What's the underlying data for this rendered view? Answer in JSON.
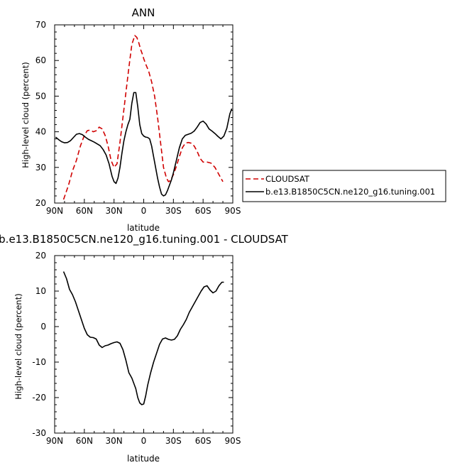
{
  "chart_data": [
    {
      "type": "line",
      "title": "ANN",
      "xlabel": "latitude",
      "ylabel": "High-level cloud (percent)",
      "xlim": [
        90,
        -90
      ],
      "ylim": [
        20,
        70
      ],
      "xticks": [
        90,
        60,
        30,
        0,
        -30,
        -60,
        -90
      ],
      "xtick_labels": [
        "90N",
        "60N",
        "30N",
        "0",
        "30S",
        "60S",
        "90S"
      ],
      "yticks": [
        20,
        30,
        40,
        50,
        60,
        70
      ],
      "ytick_labels": [
        "20",
        "30",
        "40",
        "50",
        "60",
        "70"
      ],
      "legend": {
        "placement": "right",
        "entries": [
          {
            "label": "CLOUDSAT",
            "color": "#d00000",
            "dash": "dashed"
          },
          {
            "label": "b.e13.B1850C5CN.ne120_g16.tuning.001",
            "color": "#000000",
            "dash": "solid"
          }
        ]
      },
      "series": [
        {
          "name": "CLOUDSAT",
          "color": "#d00000",
          "dash": "dashed",
          "x": [
            81,
            76,
            72,
            68,
            64,
            60,
            57,
            54,
            51,
            48,
            45,
            42,
            39,
            36,
            33,
            30,
            27,
            24,
            21,
            18,
            15,
            12,
            9,
            7,
            5,
            3,
            1,
            0,
            -2,
            -5,
            -8,
            -11,
            -14,
            -17,
            -20,
            -23,
            -25,
            -27,
            -30,
            -33,
            -36,
            -39,
            -42,
            -45,
            -48,
            -51,
            -54,
            -57,
            -60,
            -64,
            -68,
            -72,
            -76,
            -80
          ],
          "y": [
            21,
            25,
            29,
            32,
            36,
            39,
            40.3,
            40.5,
            40,
            40.3,
            41.3,
            40.8,
            39,
            36,
            32,
            30,
            31,
            37,
            44,
            51,
            58,
            64.5,
            67,
            66.5,
            65,
            63,
            61.5,
            60.5,
            59,
            57,
            54,
            50,
            44,
            37,
            30,
            27,
            26,
            26.3,
            28,
            30.3,
            33,
            35.5,
            36.8,
            37,
            36.8,
            36,
            34.5,
            32.5,
            31.5,
            31.5,
            31.2,
            30,
            28,
            26
          ]
        },
        {
          "name": "b.e13.B1850C5CN.ne120_g16.tuning.001",
          "color": "#000000",
          "dash": "solid",
          "x": [
            89,
            86,
            83,
            80,
            77,
            74,
            71,
            68,
            65,
            62,
            59,
            56,
            53,
            50,
            47,
            44,
            41,
            38,
            35,
            32,
            30,
            28,
            26,
            24,
            22,
            20,
            18,
            16,
            14,
            12,
            10,
            8,
            6,
            4,
            2,
            0,
            -2,
            -4,
            -6,
            -8,
            -10,
            -12,
            -14,
            -16,
            -18,
            -20,
            -22,
            -24,
            -26,
            -28,
            -30,
            -33,
            -36,
            -39,
            -42,
            -45,
            -48,
            -51,
            -54,
            -57,
            -60,
            -63,
            -66,
            -69,
            -72,
            -75,
            -78,
            -81,
            -84,
            -87,
            -89
          ],
          "y": [
            38.5,
            37.8,
            37.2,
            36.9,
            37,
            37.5,
            38.4,
            39.3,
            39.5,
            39.2,
            38.5,
            37.9,
            37.5,
            37.1,
            36.6,
            36.1,
            35,
            33.5,
            31,
            27.5,
            26,
            25.5,
            27,
            30,
            34,
            37.5,
            40,
            42,
            43.5,
            48,
            51,
            51,
            47,
            42,
            39.5,
            38.8,
            38.5,
            38.4,
            38,
            36,
            33,
            30,
            27,
            24.5,
            22.5,
            22,
            22.3,
            23.5,
            25,
            26.5,
            28.5,
            32,
            35.5,
            38,
            39,
            39.3,
            39.6,
            40.2,
            41.3,
            42.6,
            43,
            42.2,
            40.8,
            40.2,
            39.5,
            38.7,
            38,
            38.8,
            41,
            45,
            46.5
          ]
        }
      ]
    },
    {
      "type": "line",
      "title": "b.e13.B1850C5CN.ne120_g16.tuning.001 - CLOUDSAT",
      "xlabel": "latitude",
      "ylabel": "High-level cloud (percent)",
      "xlim": [
        90,
        -90
      ],
      "ylim": [
        -30,
        20
      ],
      "xticks": [
        90,
        60,
        30,
        0,
        -30,
        -60,
        -90
      ],
      "xtick_labels": [
        "90N",
        "60N",
        "30N",
        "0",
        "30S",
        "60S",
        "90S"
      ],
      "yticks": [
        -30,
        -20,
        -10,
        0,
        10,
        20
      ],
      "ytick_labels": [
        "-30",
        "-20",
        "-10",
        "0",
        "10",
        "20"
      ],
      "series": [
        {
          "color": "#000000",
          "dash": "solid",
          "x": [
            81,
            78,
            75,
            72,
            69,
            66,
            63,
            60,
            57,
            54,
            51,
            48,
            45,
            42,
            39,
            36,
            33,
            30,
            27,
            24,
            21,
            18,
            15,
            12,
            10,
            8,
            6,
            4,
            2,
            0,
            -2,
            -4,
            -7,
            -10,
            -13,
            -16,
            -19,
            -22,
            -25,
            -28,
            -31,
            -34,
            -37,
            -40,
            -43,
            -46,
            -49,
            -52,
            -55,
            -58,
            -61,
            -64,
            -67,
            -70,
            -73,
            -76,
            -79,
            -81
          ],
          "y": [
            15.5,
            13.5,
            10.5,
            9,
            7,
            4.5,
            2,
            -0.5,
            -2.3,
            -3,
            -3.1,
            -3.5,
            -5.2,
            -5.9,
            -5.4,
            -5.2,
            -4.8,
            -4.5,
            -4.3,
            -4.7,
            -6.5,
            -9.5,
            -13,
            -14.5,
            -16,
            -17.5,
            -20,
            -21.5,
            -22,
            -21.8,
            -19.5,
            -16.5,
            -13,
            -10,
            -7.5,
            -5,
            -3.5,
            -3.2,
            -3.6,
            -3.8,
            -3.6,
            -2.6,
            -0.8,
            0.5,
            2,
            4,
            5.5,
            7,
            8.5,
            10,
            11.2,
            11.5,
            10.3,
            9.5,
            10,
            11.5,
            12.5,
            12.5
          ]
        }
      ]
    }
  ]
}
